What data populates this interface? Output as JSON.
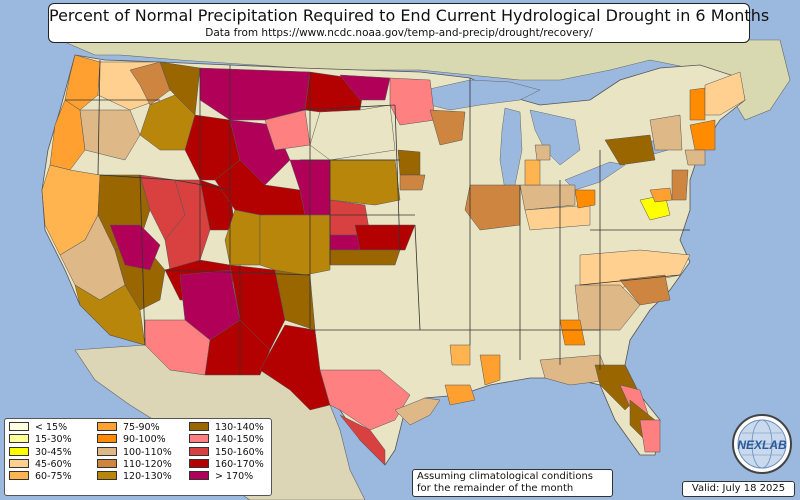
{
  "title": "Percent of Normal Precipitation Required to End Current Hydrological Drought in 6 Months",
  "subtitle": "Data from https://www.ncdc.noaa.gov/temp-and-precip/drought/recovery/",
  "legend": [
    {
      "label": "< 15%",
      "color": "#ffffe0"
    },
    {
      "label": "15-30%",
      "color": "#ffff99"
    },
    {
      "label": "30-45%",
      "color": "#ffff00"
    },
    {
      "label": "45-60%",
      "color": "#ffd090"
    },
    {
      "label": "60-75%",
      "color": "#ffb450"
    },
    {
      "label": "75-90%",
      "color": "#ffa030"
    },
    {
      "label": "90-100%",
      "color": "#ff8c00"
    },
    {
      "label": "100-110%",
      "color": "#deb887"
    },
    {
      "label": "110-120%",
      "color": "#cd853f"
    },
    {
      "label": "120-130%",
      "color": "#b8860b"
    },
    {
      "label": "130-140%",
      "color": "#996600"
    },
    {
      "label": "140-150%",
      "color": "#ff8080"
    },
    {
      "label": "150-160%",
      "color": "#d94040"
    },
    {
      "label": "160-170%",
      "color": "#b30000"
    },
    {
      "label": "> 170%",
      "color": "#b00058"
    }
  ],
  "note": [
    "Assuming climatological conditions",
    "for the remainder of the month"
  ],
  "valid": "Valid: July 18 2025",
  "logo_text": "NEXLAB",
  "colors": {
    "ocean": "#9bb8df",
    "land": "#e9e4c3",
    "border": "#555555"
  }
}
